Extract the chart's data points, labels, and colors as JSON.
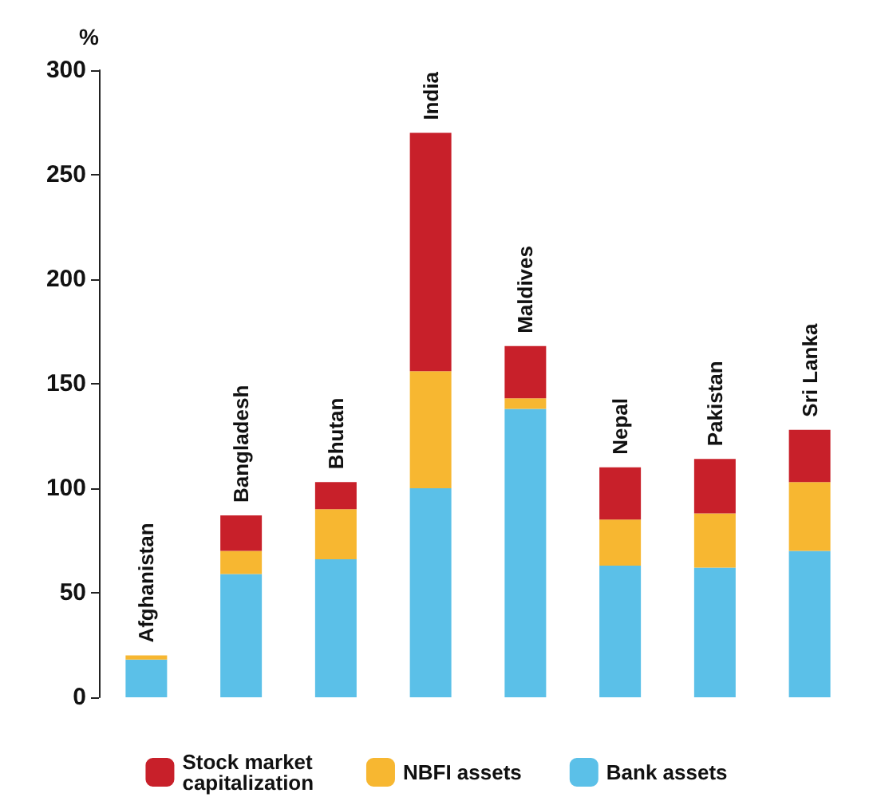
{
  "chart_data": {
    "type": "bar",
    "stacked": true,
    "ylabel": "%",
    "categories": [
      "Afghanistan",
      "Bangladesh",
      "Bhutan",
      "India",
      "Maldives",
      "Nepal",
      "Pakistan",
      "Sri Lanka"
    ],
    "series": [
      {
        "name": "Bank assets",
        "color": "#5bc0e8",
        "values": [
          18,
          59,
          66,
          100,
          138,
          63,
          62,
          70
        ]
      },
      {
        "name": "NBFI assets",
        "color": "#f7b731",
        "values": [
          2,
          11,
          24,
          56,
          5,
          22,
          26,
          33
        ]
      },
      {
        "name": "Stock market capitalization",
        "color": "#c8202a",
        "values": [
          0,
          17,
          13,
          114,
          25,
          25,
          26,
          25
        ]
      }
    ],
    "ylim": [
      0,
      300
    ],
    "yticks": [
      0,
      50,
      100,
      150,
      200,
      250,
      300
    ],
    "grid": false,
    "legend": "bottom",
    "tick_labels": "y"
  }
}
